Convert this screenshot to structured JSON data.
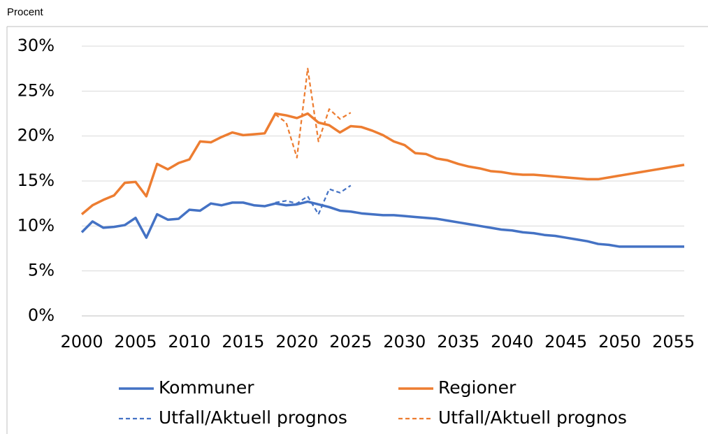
{
  "chart_data": {
    "type": "line",
    "y_label": "Procent",
    "x": [
      2000,
      2001,
      2002,
      2003,
      2004,
      2005,
      2006,
      2007,
      2008,
      2009,
      2010,
      2011,
      2012,
      2013,
      2014,
      2015,
      2016,
      2017,
      2018,
      2019,
      2020,
      2021,
      2022,
      2023,
      2024,
      2025,
      2026,
      2027,
      2028,
      2029,
      2030,
      2031,
      2032,
      2033,
      2034,
      2035,
      2036,
      2037,
      2038,
      2039,
      2040,
      2041,
      2042,
      2043,
      2044,
      2045,
      2046,
      2047,
      2048,
      2049,
      2050,
      2051,
      2052,
      2053,
      2054,
      2055,
      2056
    ],
    "series": [
      {
        "name": "Kommuner",
        "color": "#4472c4",
        "style": "solid",
        "values": [
          9.3,
          10.5,
          9.8,
          9.9,
          10.1,
          10.9,
          8.7,
          11.3,
          10.7,
          10.8,
          11.8,
          11.7,
          12.5,
          12.3,
          12.6,
          12.6,
          12.3,
          12.2,
          12.5,
          12.3,
          12.4,
          12.7,
          12.4,
          12.1,
          11.7,
          11.6,
          11.4,
          11.3,
          11.2,
          11.2,
          11.1,
          11.0,
          10.9,
          10.8,
          10.6,
          10.4,
          10.2,
          10.0,
          9.8,
          9.6,
          9.5,
          9.3,
          9.2,
          9.0,
          8.9,
          8.7,
          8.5,
          8.3,
          8.0,
          7.9,
          7.7,
          7.7,
          7.7,
          7.7,
          7.7,
          7.7,
          7.7
        ]
      },
      {
        "name": "Regioner",
        "color": "#ed7d31",
        "style": "solid",
        "values": [
          11.3,
          12.3,
          12.9,
          13.4,
          14.8,
          14.9,
          13.3,
          16.9,
          16.3,
          17.0,
          17.4,
          19.4,
          19.3,
          19.9,
          20.4,
          20.1,
          20.2,
          20.3,
          22.5,
          22.3,
          22.0,
          22.5,
          21.5,
          21.2,
          20.4,
          21.1,
          21.0,
          20.6,
          20.1,
          19.4,
          19.0,
          18.1,
          18.0,
          17.5,
          17.3,
          16.9,
          16.6,
          16.4,
          16.1,
          16.0,
          15.8,
          15.7,
          15.7,
          15.6,
          15.5,
          15.4,
          15.3,
          15.2,
          15.2,
          15.4,
          15.6,
          15.8,
          16.0,
          16.2,
          16.4,
          16.6,
          16.8
        ]
      },
      {
        "name": "Utfall/Aktuell prognos",
        "color": "#4472c4",
        "style": "dashed",
        "values": [
          null,
          null,
          null,
          null,
          null,
          null,
          null,
          null,
          null,
          null,
          null,
          null,
          null,
          null,
          null,
          null,
          null,
          null,
          12.6,
          12.8,
          12.5,
          13.3,
          11.3,
          14.1,
          13.7,
          14.5,
          null,
          null,
          null,
          null,
          null,
          null,
          null,
          null,
          null,
          null,
          null,
          null,
          null,
          null,
          null,
          null,
          null,
          null,
          null,
          null,
          null,
          null,
          null,
          null,
          null,
          null,
          null,
          null,
          null,
          null,
          null
        ]
      },
      {
        "name": "Utfall/Aktuell prognos",
        "color": "#ed7d31",
        "style": "dashed",
        "values": [
          null,
          null,
          null,
          null,
          null,
          null,
          null,
          null,
          null,
          null,
          null,
          null,
          null,
          null,
          null,
          null,
          null,
          null,
          22.4,
          21.5,
          17.6,
          27.5,
          19.4,
          23.0,
          21.9,
          22.6,
          null,
          null,
          null,
          null,
          null,
          null,
          null,
          null,
          null,
          null,
          null,
          null,
          null,
          null,
          null,
          null,
          null,
          null,
          null,
          null,
          null,
          null,
          null,
          null,
          null,
          null,
          null,
          null,
          null,
          null,
          null
        ]
      }
    ],
    "xlim": [
      2000,
      2056
    ],
    "xticks": [
      2000,
      2005,
      2010,
      2015,
      2020,
      2025,
      2030,
      2035,
      2040,
      2045,
      2050,
      2055
    ],
    "ylim": [
      0,
      30
    ],
    "yticks": [
      {
        "value": 0,
        "label": "0%"
      },
      {
        "value": 5,
        "label": "5%"
      },
      {
        "value": 10,
        "label": "10%"
      },
      {
        "value": 15,
        "label": "15%"
      },
      {
        "value": 20,
        "label": "20%"
      },
      {
        "value": 25,
        "label": "25%"
      },
      {
        "value": 30,
        "label": "30%"
      }
    ],
    "grid": true,
    "legend": "bottom"
  }
}
